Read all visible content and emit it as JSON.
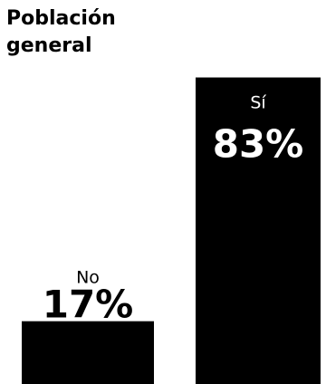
{
  "chart_data": {
    "type": "bar",
    "title_lines": [
      "Población",
      "general"
    ],
    "categories": [
      "No",
      "Sí"
    ],
    "values": [
      17,
      83
    ],
    "value_labels": [
      "17%",
      "83%"
    ],
    "ylim": [
      0,
      100
    ],
    "xlabel": "",
    "ylabel": "",
    "grid": false,
    "legend": "none",
    "colors": {
      "bar": "#000000",
      "label_inside": "#ffffff",
      "label_outside": "#000000",
      "background": "#ffffff"
    }
  }
}
